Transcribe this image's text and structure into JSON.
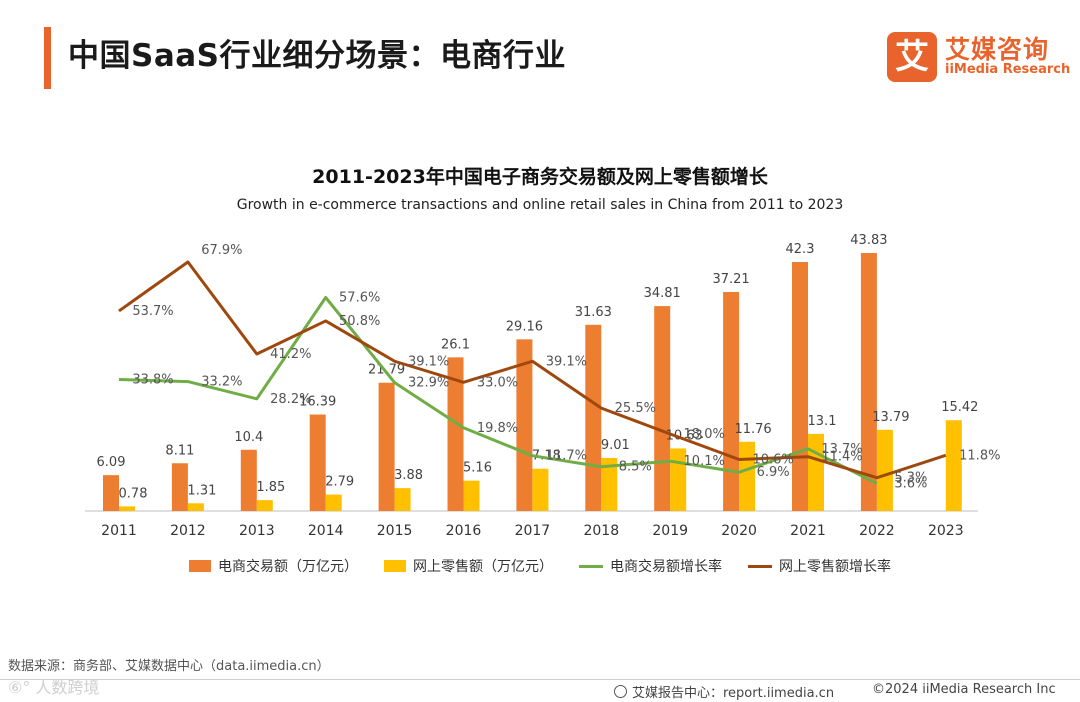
{
  "header": {
    "title": "中国SaaS行业细分场景：电商行业",
    "logo_mark": "艾",
    "logo_cn": "艾媒咨询",
    "logo_en": "iiMedia Research",
    "accent_color": "#e8642c"
  },
  "chart_data": {
    "type": "bar",
    "title": "2011-2023年中国电子商务交易额及网上零售额增长",
    "subtitle": "Growth in e-commerce transactions and online retail sales in China from 2011 to 2023",
    "categories": [
      "2011",
      "2012",
      "2013",
      "2014",
      "2015",
      "2016",
      "2017",
      "2018",
      "2019",
      "2020",
      "2021",
      "2022",
      "2023"
    ],
    "series": [
      {
        "name": "电商交易额（万亿元）",
        "kind": "bar",
        "color": "#ed7d31",
        "values": [
          6.09,
          8.11,
          10.4,
          16.39,
          21.79,
          26.1,
          29.16,
          31.63,
          34.81,
          37.21,
          42.3,
          43.83,
          null
        ],
        "labels": [
          "6.09",
          "8.11",
          "10.4",
          "16.39",
          "21.79",
          "26.1",
          "29.16",
          "31.63",
          "34.81",
          "37.21",
          "42.3",
          "43.83",
          ""
        ]
      },
      {
        "name": "网上零售额（万亿元）",
        "kind": "bar",
        "color": "#ffc000",
        "values": [
          0.78,
          1.31,
          1.85,
          2.79,
          3.88,
          5.16,
          7.18,
          9.01,
          10.63,
          11.76,
          13.1,
          13.79,
          15.42
        ],
        "labels": [
          "0.78",
          "1.31",
          "1.85",
          "2.79",
          "3.88",
          "5.16",
          "7.18",
          "9.01",
          "10.63",
          "11.76",
          "13.1",
          "13.79",
          "15.42"
        ]
      },
      {
        "name": "电商交易额增长率",
        "kind": "line",
        "color": "#70ad47",
        "values": [
          33.8,
          33.2,
          28.2,
          57.6,
          32.9,
          19.8,
          11.7,
          8.5,
          10.1,
          6.9,
          13.7,
          3.6,
          null
        ],
        "labels": [
          "33.8%",
          "33.2%",
          "28.2%",
          "57.6%",
          "32.9%",
          "19.8%",
          "11.7%",
          "8.5%",
          "10.1%",
          "6.9%",
          "13.7%",
          "3.6%",
          ""
        ]
      },
      {
        "name": "网上零售额增长率",
        "kind": "line",
        "color": "#9e480e",
        "values": [
          53.7,
          67.9,
          41.2,
          50.8,
          39.1,
          33.0,
          39.1,
          25.5,
          18.0,
          10.6,
          11.4,
          5.3,
          11.8
        ],
        "labels": [
          "53.7%",
          "67.9%",
          "41.2%",
          "50.8%",
          "39.1%",
          "33.0%",
          "39.1%",
          "25.5%",
          "18.0%",
          "10.6%",
          "11.4%",
          "5.3%",
          "11.8%"
        ]
      }
    ]
  },
  "source": "数据来源：商务部、艾媒数据中心（data.iimedia.cn）",
  "watermark": "⑥° 人数跨境",
  "footer": {
    "report": "艾媒报告中心：report.iimedia.cn",
    "copyright": "©2024 iiMedia Research Inc"
  }
}
